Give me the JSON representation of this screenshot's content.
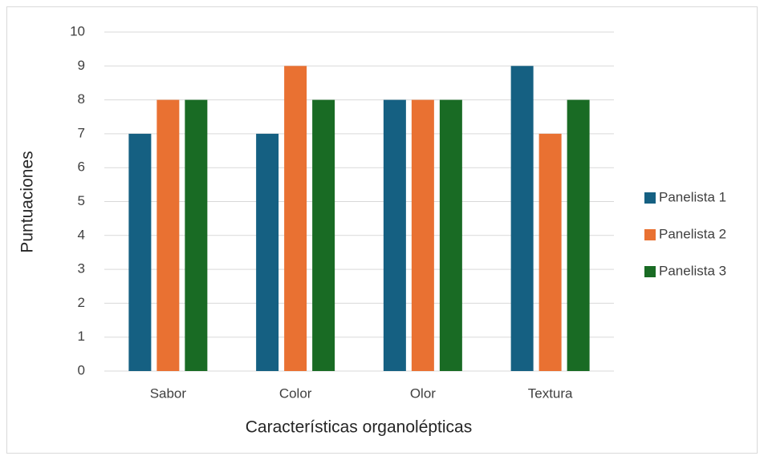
{
  "chart_data": {
    "type": "bar",
    "x_label": "Características organolépticas",
    "y_label": "Puntuaciones",
    "categories": [
      "Sabor",
      "Color",
      "Olor",
      "Textura"
    ],
    "series": [
      {
        "name": "Panelista 1",
        "color": "#156082",
        "values": [
          7,
          7,
          8,
          9
        ]
      },
      {
        "name": "Panelista 2",
        "color": "#e97132",
        "values": [
          8,
          9,
          8,
          7
        ]
      },
      {
        "name": "Panelista 3",
        "color": "#196b24",
        "values": [
          8,
          8,
          8,
          8
        ]
      }
    ],
    "ylim": [
      0,
      10
    ],
    "yticks": [
      0,
      1,
      2,
      3,
      4,
      5,
      6,
      7,
      8,
      9,
      10
    ],
    "grid": true,
    "legend": "right"
  }
}
